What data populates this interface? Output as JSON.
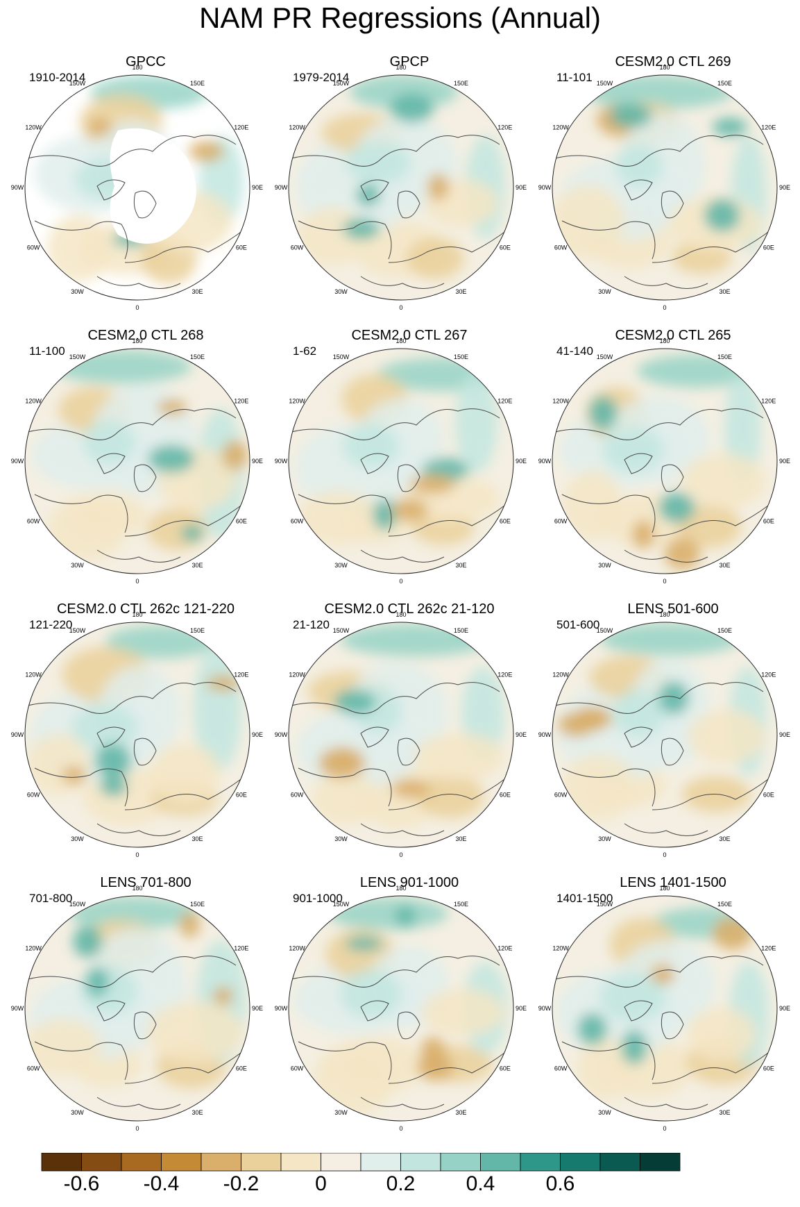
{
  "title": "NAM PR Regressions (Annual)",
  "longitude_labels": [
    "180",
    "150E",
    "120E",
    "90E",
    "60E",
    "30E",
    "0",
    "30W",
    "60W",
    "90W",
    "120W",
    "150W"
  ],
  "panels": [
    {
      "title": "GPCC",
      "period": "1910-2014"
    },
    {
      "title": "GPCP",
      "period": "1979-2014"
    },
    {
      "title": "CESM2.0 CTL 269",
      "period": "11-101"
    },
    {
      "title": "CESM2.0 CTL 268",
      "period": "11-100"
    },
    {
      "title": "CESM2.0 CTL 267",
      "period": "1-62"
    },
    {
      "title": "CESM2.0 CTL 265",
      "period": "41-140"
    },
    {
      "title": "CESM2.0 CTL 262c 121-220",
      "period": "121-220"
    },
    {
      "title": "CESM2.0 CTL 262c 21-120",
      "period": "21-120"
    },
    {
      "title": "LENS 501-600",
      "period": "501-600"
    },
    {
      "title": "LENS 701-800",
      "period": "701-800"
    },
    {
      "title": "LENS 901-1000",
      "period": "901-1000"
    },
    {
      "title": "LENS 1401-1500",
      "period": "1401-1500"
    }
  ],
  "colorbar": {
    "colors": [
      "#5a3108",
      "#844c12",
      "#a86920",
      "#c48a35",
      "#d9af6b",
      "#ead09a",
      "#f5e6c5",
      "#f4efe2",
      "#e0eeec",
      "#c2e6df",
      "#96d3c6",
      "#62b7a9",
      "#2f968a",
      "#167a6f",
      "#0b5a51",
      "#053d36"
    ],
    "labels": [
      "-0.6",
      "-0.4",
      "-0.2",
      "0",
      "0.2",
      "0.4",
      "0.6"
    ]
  }
}
